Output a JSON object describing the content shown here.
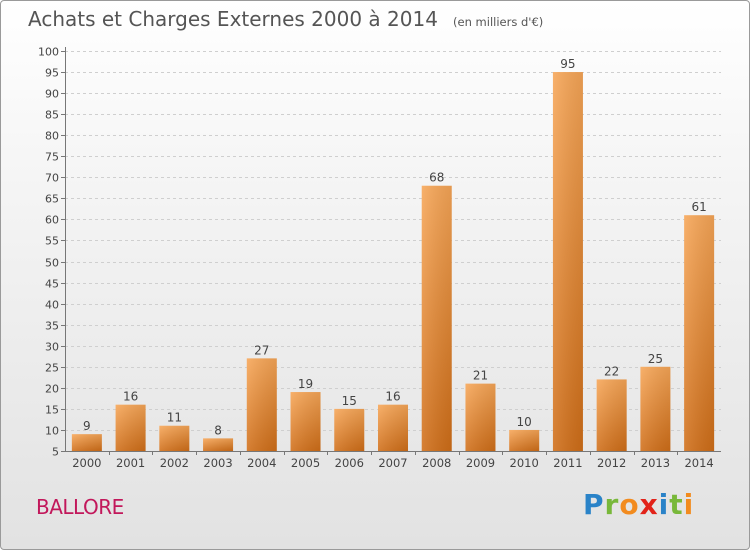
{
  "title": "Achats et Charges Externes 2000 à 2014",
  "unit": "(en milliers d'€)",
  "commune": "BALLORE",
  "logo": {
    "letters": [
      "P",
      "r",
      "o",
      "x",
      "i",
      "t",
      "i"
    ],
    "colors": [
      "#2a83c8",
      "#78b83a",
      "#f28b1e",
      "#e2231a",
      "#2a83c8",
      "#78b83a",
      "#f28b1e"
    ]
  },
  "chart_data": {
    "type": "bar",
    "title": "Achats et Charges Externes 2000 à 2014",
    "categories": [
      "2000",
      "2001",
      "2002",
      "2003",
      "2004",
      "2005",
      "2006",
      "2007",
      "2008",
      "2009",
      "2010",
      "2011",
      "2012",
      "2013",
      "2014"
    ],
    "values": [
      9,
      16,
      11,
      8,
      27,
      19,
      15,
      16,
      68,
      21,
      10,
      95,
      22,
      25,
      61
    ],
    "ylim": [
      5,
      100
    ],
    "yticks": [
      5,
      10,
      15,
      20,
      25,
      30,
      35,
      40,
      45,
      50,
      55,
      60,
      65,
      70,
      75,
      80,
      85,
      90,
      95,
      100
    ],
    "grid": true,
    "bar_color": "#f0923a"
  }
}
